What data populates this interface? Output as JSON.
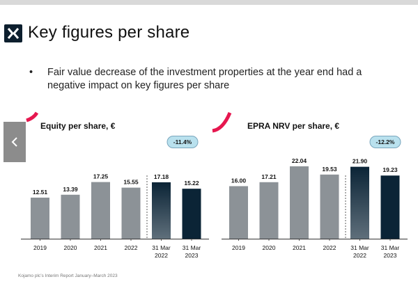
{
  "slide": {
    "title": "Key figures per share",
    "bullets": [
      "Fair value decrease of the investment properties at the year end had a negative impact on key figures per share"
    ],
    "footer": "Kojamo plc’s Interim Report January–March 2023",
    "nav_prev_icon": "chevron-left-icon",
    "logo_icon": "kojamo-logo-icon",
    "colors": {
      "accent_arc": "#e6174f",
      "bar_gray": "#8c9297",
      "bar_navy": "#0b2436",
      "pill_fill": "#b9e1ee",
      "pill_stroke": "#7aa6bd"
    }
  },
  "chart_data": [
    {
      "type": "bar",
      "title": "Equity per share, €",
      "categories": [
        "2019",
        "2020",
        "2021",
        "2022",
        "31 Mar 2022",
        "31 Mar 2023"
      ],
      "values": [
        12.51,
        13.39,
        17.25,
        15.55,
        17.18,
        15.22
      ],
      "value_labels": [
        "12.51",
        "13.39",
        "17.25",
        "15.55",
        "17.18",
        "15.22"
      ],
      "bar_styles": [
        "gray",
        "gray",
        "gray",
        "gray",
        "navy-gradient",
        "navy"
      ],
      "change_badge": "-11.4%",
      "ylim": [
        0,
        26
      ],
      "grid": false
    },
    {
      "type": "bar",
      "title": "EPRA NRV per share, €",
      "categories": [
        "2019",
        "2020",
        "2021",
        "2022",
        "31 Mar 2022",
        "31 Mar 2023"
      ],
      "values": [
        16.0,
        17.21,
        22.04,
        19.53,
        21.9,
        19.23
      ],
      "value_labels": [
        "16.00",
        "17.21",
        "22.04",
        "19.53",
        "21.90",
        "19.23"
      ],
      "bar_styles": [
        "gray",
        "gray",
        "gray",
        "gray",
        "navy-gradient",
        "navy"
      ],
      "change_badge": "-12.2%",
      "ylim": [
        0,
        26
      ],
      "grid": false
    }
  ]
}
